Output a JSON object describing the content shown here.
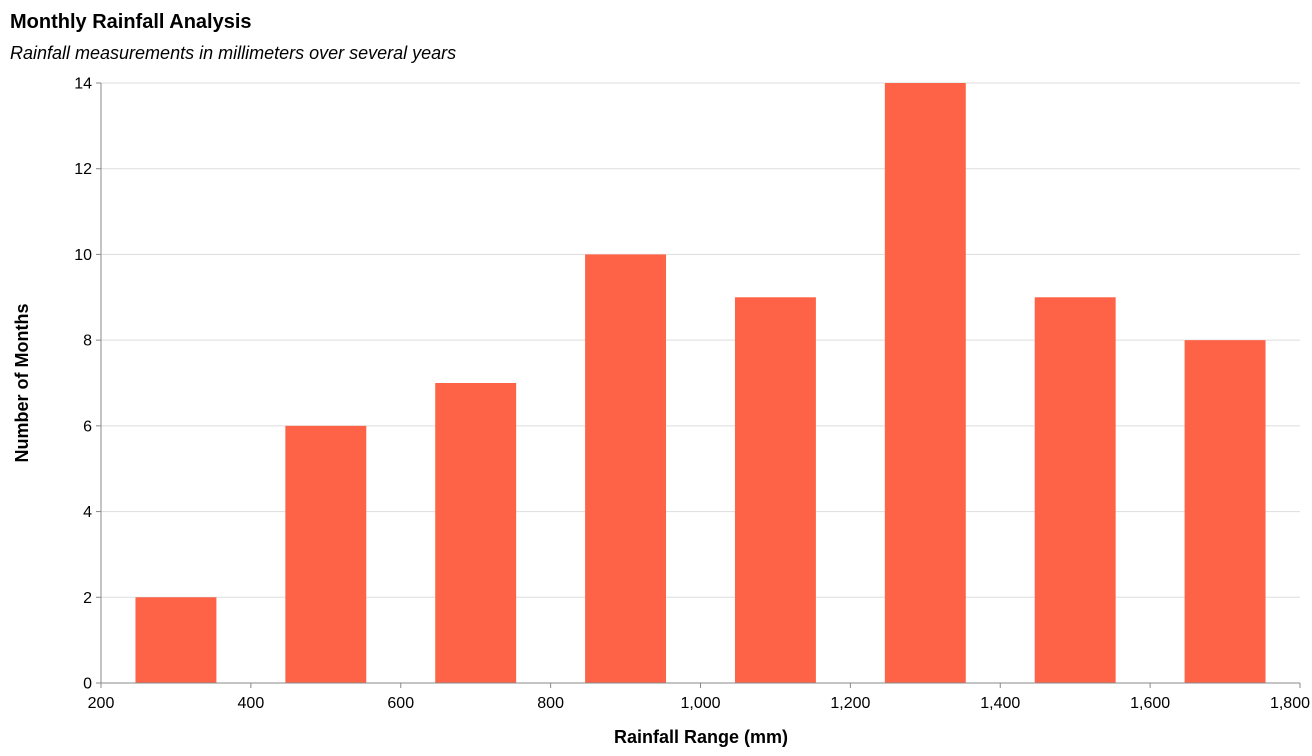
{
  "chart_data": {
    "type": "bar",
    "title": "Monthly Rainfall Analysis",
    "subtitle": "Rainfall measurements in millimeters over several years",
    "xlabel": "Rainfall Range (mm)",
    "ylabel": "Number of Months",
    "bins": [
      {
        "start": 200,
        "end": 400,
        "value": 2
      },
      {
        "start": 400,
        "end": 600,
        "value": 6
      },
      {
        "start": 600,
        "end": 800,
        "value": 7
      },
      {
        "start": 800,
        "end": 1000,
        "value": 10
      },
      {
        "start": 1000,
        "end": 1200,
        "value": 9
      },
      {
        "start": 1200,
        "end": 1400,
        "value": 14
      },
      {
        "start": 1400,
        "end": 1600,
        "value": 9
      },
      {
        "start": 1600,
        "end": 1800,
        "value": 8
      }
    ],
    "xlim": [
      200,
      1800
    ],
    "ylim": [
      0,
      14
    ],
    "x_ticks": [
      200,
      400,
      600,
      800,
      1000,
      1200,
      1400,
      1600,
      1800
    ],
    "x_tick_labels": [
      "200",
      "400",
      "600",
      "800",
      "1,000",
      "1,200",
      "1,400",
      "1,600",
      "1,800"
    ],
    "y_ticks": [
      0,
      2,
      4,
      6,
      8,
      10,
      12,
      14
    ],
    "y_tick_labels": [
      "0",
      "2",
      "4",
      "6",
      "8",
      "10",
      "12",
      "14"
    ],
    "bar_color": "#ff6347",
    "grid": true,
    "legend": false
  }
}
